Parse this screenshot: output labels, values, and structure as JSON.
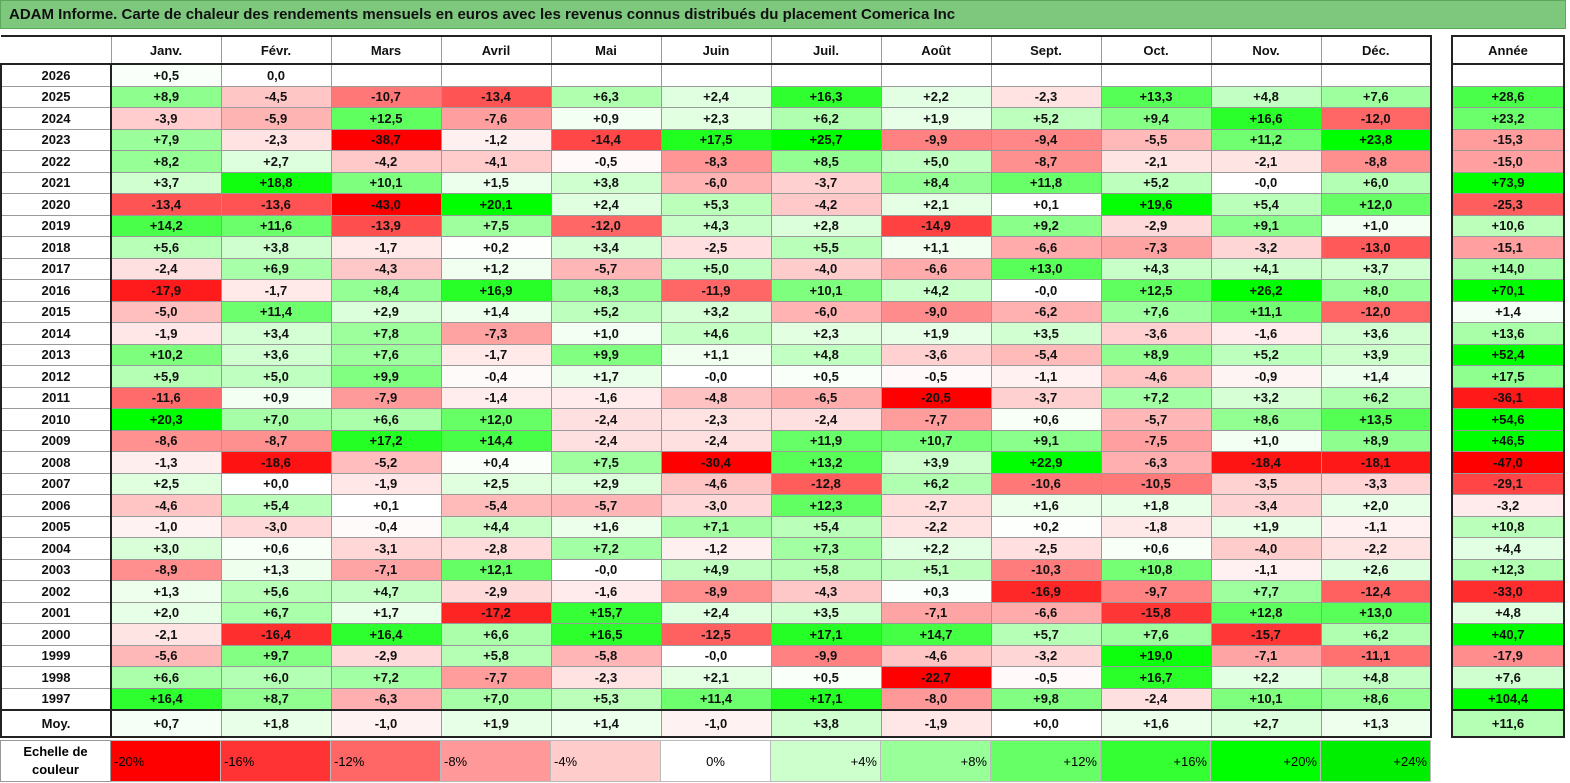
{
  "title": "ADAM Informe. Carte de chaleur des rendements mensuels en euros avec les revenus connus distribués du placement Comerica Inc",
  "chart_data": {
    "type": "heatmap",
    "months": [
      "Janv.",
      "Févr.",
      "Mars",
      "Avril",
      "Mai",
      "Juin",
      "Juil.",
      "Août",
      "Sept.",
      "Oct.",
      "Nov.",
      "Déc."
    ],
    "year_header": "Année",
    "rows": [
      {
        "year": "2026",
        "values": [
          "+0,5",
          "0,0",
          "",
          "",
          "",
          "",
          "",
          "",
          "",
          "",
          "",
          ""
        ],
        "annual": ""
      },
      {
        "year": "2025",
        "values": [
          "+8,9",
          "-4,5",
          "-10,7",
          "-13,4",
          "+6,3",
          "+2,4",
          "+16,3",
          "+2,2",
          "-2,3",
          "+13,3",
          "+4,8",
          "+7,6"
        ],
        "annual": "+28,6"
      },
      {
        "year": "2024",
        "values": [
          "-3,9",
          "-5,9",
          "+12,5",
          "-7,6",
          "+0,9",
          "+2,3",
          "+6,2",
          "+1,9",
          "+5,2",
          "+9,4",
          "+16,6",
          "-12,0"
        ],
        "annual": "+23,2"
      },
      {
        "year": "2023",
        "values": [
          "+7,9",
          "-2,3",
          "-38,7",
          "-1,2",
          "-14,4",
          "+17,5",
          "+25,7",
          "-9,9",
          "-9,4",
          "-5,5",
          "+11,2",
          "+23,8"
        ],
        "annual": "-15,3"
      },
      {
        "year": "2022",
        "values": [
          "+8,2",
          "+2,7",
          "-4,2",
          "-4,1",
          "-0,5",
          "-8,3",
          "+8,5",
          "+5,0",
          "-8,7",
          "-2,1",
          "-2,1",
          "-8,8"
        ],
        "annual": "-15,0"
      },
      {
        "year": "2021",
        "values": [
          "+3,7",
          "+18,8",
          "+10,1",
          "+1,5",
          "+3,8",
          "-6,0",
          "-3,7",
          "+8,4",
          "+11,8",
          "+5,2",
          "-0,0",
          "+6,0"
        ],
        "annual": "+73,9"
      },
      {
        "year": "2020",
        "values": [
          "-13,4",
          "-13,6",
          "-43,0",
          "+20,1",
          "+2,4",
          "+5,3",
          "-4,2",
          "+2,1",
          "+0,1",
          "+19,6",
          "+5,4",
          "+12,0"
        ],
        "annual": "-25,3"
      },
      {
        "year": "2019",
        "values": [
          "+14,2",
          "+11,6",
          "-13,9",
          "+7,5",
          "-12,0",
          "+4,3",
          "+2,8",
          "-14,9",
          "+9,2",
          "-2,9",
          "+9,1",
          "+1,0"
        ],
        "annual": "+10,6"
      },
      {
        "year": "2018",
        "values": [
          "+5,6",
          "+3,8",
          "-1,7",
          "+0,2",
          "+3,4",
          "-2,5",
          "+5,5",
          "+1,1",
          "-6,6",
          "-7,3",
          "-3,2",
          "-13,0"
        ],
        "annual": "-15,1"
      },
      {
        "year": "2017",
        "values": [
          "-2,4",
          "+6,9",
          "-4,3",
          "+1,2",
          "-5,7",
          "+5,0",
          "-4,0",
          "-6,6",
          "+13,0",
          "+4,3",
          "+4,1",
          "+3,7"
        ],
        "annual": "+14,0"
      },
      {
        "year": "2016",
        "values": [
          "-17,9",
          "-1,7",
          "+8,4",
          "+16,9",
          "+8,3",
          "-11,9",
          "+10,1",
          "+4,2",
          "-0,0",
          "+12,5",
          "+26,2",
          "+8,0"
        ],
        "annual": "+70,1"
      },
      {
        "year": "2015",
        "values": [
          "-5,0",
          "+11,4",
          "+2,9",
          "+1,4",
          "+5,2",
          "+3,2",
          "-6,0",
          "-9,0",
          "-6,2",
          "+7,6",
          "+11,1",
          "-12,0"
        ],
        "annual": "+1,4"
      },
      {
        "year": "2014",
        "values": [
          "-1,9",
          "+3,4",
          "+7,8",
          "-7,3",
          "+1,0",
          "+4,6",
          "+2,3",
          "+1,9",
          "+3,5",
          "-3,6",
          "-1,6",
          "+3,6"
        ],
        "annual": "+13,6"
      },
      {
        "year": "2013",
        "values": [
          "+10,2",
          "+3,6",
          "+7,6",
          "-1,7",
          "+9,9",
          "+1,1",
          "+4,8",
          "-3,6",
          "-5,4",
          "+8,9",
          "+5,2",
          "+3,9"
        ],
        "annual": "+52,4"
      },
      {
        "year": "2012",
        "values": [
          "+5,9",
          "+5,0",
          "+9,9",
          "-0,4",
          "+1,7",
          "-0,0",
          "+0,5",
          "-0,5",
          "-1,1",
          "-4,6",
          "-0,9",
          "+1,4"
        ],
        "annual": "+17,5"
      },
      {
        "year": "2011",
        "values": [
          "-11,6",
          "+0,9",
          "-7,9",
          "-1,4",
          "-1,6",
          "-4,8",
          "-6,5",
          "-20,5",
          "-3,7",
          "+7,2",
          "+3,2",
          "+6,2"
        ],
        "annual": "-36,1"
      },
      {
        "year": "2010",
        "values": [
          "+20,3",
          "+7,0",
          "+6,6",
          "+12,0",
          "-2,4",
          "-2,3",
          "-2,4",
          "-7,7",
          "+0,6",
          "-5,7",
          "+8,6",
          "+13,5"
        ],
        "annual": "+54,6"
      },
      {
        "year": "2009",
        "values": [
          "-8,6",
          "-8,7",
          "+17,2",
          "+14,4",
          "-2,4",
          "-2,4",
          "+11,9",
          "+10,7",
          "+9,1",
          "-7,5",
          "+1,0",
          "+8,9"
        ],
        "annual": "+46,5"
      },
      {
        "year": "2008",
        "values": [
          "-1,3",
          "-18,6",
          "-5,2",
          "+0,4",
          "+7,5",
          "-30,4",
          "+13,2",
          "+3,9",
          "+22,9",
          "-6,3",
          "-18,4",
          "-18,1"
        ],
        "annual": "-47,0"
      },
      {
        "year": "2007",
        "values": [
          "+2,5",
          "+0,0",
          "-1,9",
          "+2,5",
          "+2,9",
          "-4,6",
          "-12,8",
          "+6,2",
          "-10,6",
          "-10,5",
          "-3,5",
          "-3,3"
        ],
        "annual": "-29,1"
      },
      {
        "year": "2006",
        "values": [
          "-4,6",
          "+5,4",
          "+0,1",
          "-5,4",
          "-5,7",
          "-3,0",
          "+12,3",
          "-2,7",
          "+1,6",
          "+1,8",
          "-3,4",
          "+2,0"
        ],
        "annual": "-3,2"
      },
      {
        "year": "2005",
        "values": [
          "-1,0",
          "-3,0",
          "-0,4",
          "+4,4",
          "+1,6",
          "+7,1",
          "+5,4",
          "-2,2",
          "+0,2",
          "-1,8",
          "+1,9",
          "-1,1"
        ],
        "annual": "+10,8"
      },
      {
        "year": "2004",
        "values": [
          "+3,0",
          "+0,6",
          "-3,1",
          "-2,8",
          "+7,2",
          "-1,2",
          "+7,3",
          "+2,2",
          "-2,5",
          "+0,6",
          "-4,0",
          "-2,2"
        ],
        "annual": "+4,4"
      },
      {
        "year": "2003",
        "values": [
          "-8,9",
          "+1,3",
          "-7,1",
          "+12,1",
          "-0,0",
          "+4,9",
          "+5,8",
          "+5,1",
          "-10,3",
          "+10,8",
          "-1,1",
          "+2,6"
        ],
        "annual": "+12,3"
      },
      {
        "year": "2002",
        "values": [
          "+1,3",
          "+5,6",
          "+4,7",
          "-2,9",
          "-1,6",
          "-8,9",
          "-4,3",
          "+0,3",
          "-16,9",
          "-9,7",
          "+7,7",
          "-12,4"
        ],
        "annual": "-33,0"
      },
      {
        "year": "2001",
        "values": [
          "+2,0",
          "+6,7",
          "+1,7",
          "-17,2",
          "+15,7",
          "+2,4",
          "+3,5",
          "-7,1",
          "-6,6",
          "-15,8",
          "+12,8",
          "+13,0"
        ],
        "annual": "+4,8"
      },
      {
        "year": "2000",
        "values": [
          "-2,1",
          "-16,4",
          "+16,4",
          "+6,6",
          "+16,5",
          "-12,5",
          "+17,1",
          "+14,7",
          "+5,7",
          "+7,6",
          "-15,7",
          "+6,2"
        ],
        "annual": "+40,7"
      },
      {
        "year": "1999",
        "values": [
          "-5,6",
          "+9,7",
          "-2,9",
          "+5,8",
          "-5,8",
          "-0,0",
          "-9,9",
          "-4,6",
          "-3,2",
          "+19,0",
          "-7,1",
          "-11,1"
        ],
        "annual": "-17,9"
      },
      {
        "year": "1998",
        "values": [
          "+6,6",
          "+6,0",
          "+7,2",
          "-7,7",
          "-2,3",
          "+2,1",
          "+0,5",
          "-22,7",
          "-0,5",
          "+16,7",
          "+2,2",
          "+4,8"
        ],
        "annual": "+7,6"
      },
      {
        "year": "1997",
        "values": [
          "+16,4",
          "+8,7",
          "-6,3",
          "+7,0",
          "+5,3",
          "+11,4",
          "+17,1",
          "-8,0",
          "+9,8",
          "-2,4",
          "+10,1",
          "+8,6"
        ],
        "annual": "+104,4"
      }
    ],
    "average": {
      "label": "Moy.",
      "values": [
        "+0,7",
        "+1,8",
        "-1,0",
        "+1,9",
        "+1,4",
        "-1,0",
        "+3,8",
        "-1,9",
        "+0,0",
        "+1,6",
        "+2,7",
        "+1,3"
      ],
      "annual": "+11,6"
    },
    "scale": {
      "label": "Echelle de couleur",
      "steps": [
        {
          "label": "-20%",
          "color": "#ff0000"
        },
        {
          "label": "-16%",
          "color": "#ff3333"
        },
        {
          "label": "-12%",
          "color": "#ff6666"
        },
        {
          "label": "-8%",
          "color": "#ff9999"
        },
        {
          "label": "-4%",
          "color": "#ffcccc"
        },
        {
          "label": "0%",
          "color": "#ffffff"
        },
        {
          "label": "+4%",
          "color": "#ccffcc"
        },
        {
          "label": "+8%",
          "color": "#99ff99"
        },
        {
          "label": "+12%",
          "color": "#66ff66"
        },
        {
          "label": "+16%",
          "color": "#33ff33"
        },
        {
          "label": "+20%",
          "color": "#00ff00"
        },
        {
          "label": "+24%",
          "color": "#00ee00"
        }
      ]
    }
  }
}
